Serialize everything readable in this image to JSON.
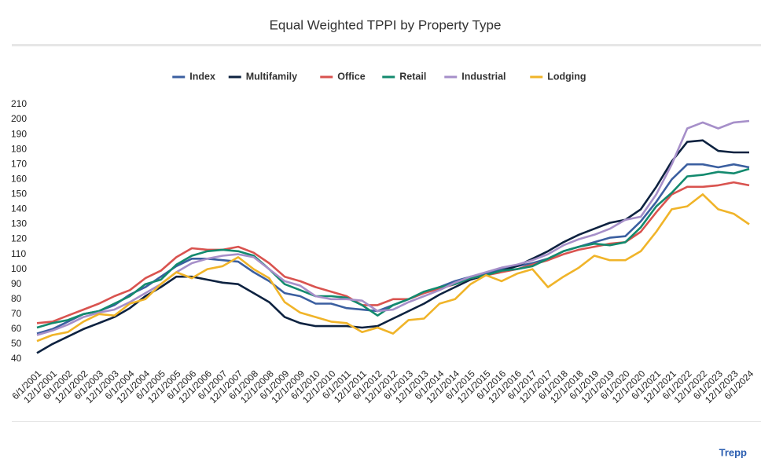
{
  "chart_data": {
    "type": "line",
    "title": "Equal Weighted TPPI by Property Type",
    "brand": "Trepp",
    "categories": [
      "6/1/2001",
      "12/1/2001",
      "6/1/2002",
      "12/1/2002",
      "6/1/2003",
      "12/1/2003",
      "6/1/2004",
      "12/1/2004",
      "6/1/2005",
      "12/1/2005",
      "6/1/2006",
      "12/1/2006",
      "6/1/2007",
      "12/1/2007",
      "6/1/2008",
      "12/1/2008",
      "6/1/2009",
      "12/1/2009",
      "6/1/2010",
      "12/1/2010",
      "6/1/2011",
      "12/1/2011",
      "6/1/2012",
      "12/1/2012",
      "6/1/2013",
      "12/1/2013",
      "6/1/2014",
      "12/1/2014",
      "6/1/2015",
      "12/1/2015",
      "6/1/2016",
      "12/1/2016",
      "6/1/2017",
      "12/1/2017",
      "6/1/2018",
      "12/1/2018",
      "6/1/2019",
      "12/1/2019",
      "6/1/2020",
      "12/1/2020",
      "6/1/2021",
      "12/1/2021",
      "6/1/2022",
      "12/1/2022",
      "6/1/2023",
      "12/1/2023",
      "6/1/2024"
    ],
    "series": [
      {
        "name": "Index",
        "color": "#3b5fa0",
        "values": [
          57,
          60,
          65,
          70,
          72,
          76,
          83,
          88,
          95,
          102,
          107,
          107,
          106,
          105,
          98,
          92,
          84,
          82,
          77,
          77,
          74,
          73,
          72,
          76,
          80,
          84,
          88,
          92,
          95,
          97,
          100,
          102,
          104,
          107,
          112,
          115,
          118,
          121,
          122,
          132,
          145,
          160,
          170,
          170,
          168,
          170,
          168
        ]
      },
      {
        "name": "Multifamily",
        "color": "#0d2240",
        "values": [
          44,
          50,
          55,
          60,
          64,
          68,
          74,
          82,
          88,
          95,
          95,
          93,
          91,
          90,
          84,
          78,
          68,
          64,
          62,
          62,
          62,
          61,
          62,
          67,
          72,
          77,
          83,
          88,
          93,
          96,
          99,
          102,
          107,
          112,
          118,
          123,
          127,
          131,
          133,
          140,
          155,
          172,
          185,
          186,
          179,
          178,
          178
        ]
      },
      {
        "name": "Office",
        "color": "#d9534f",
        "values": [
          64,
          65,
          69,
          73,
          77,
          82,
          86,
          94,
          99,
          108,
          114,
          113,
          113,
          115,
          111,
          104,
          95,
          92,
          88,
          85,
          82,
          76,
          76,
          80,
          80,
          84,
          87,
          90,
          94,
          96,
          98,
          100,
          103,
          106,
          110,
          113,
          115,
          117,
          118,
          125,
          138,
          150,
          155,
          155,
          156,
          158,
          156
        ]
      },
      {
        "name": "Retail",
        "color": "#138a6e",
        "values": [
          61,
          64,
          66,
          70,
          72,
          77,
          82,
          90,
          93,
          103,
          109,
          112,
          113,
          112,
          109,
          100,
          90,
          86,
          82,
          82,
          81,
          76,
          69,
          76,
          80,
          85,
          88,
          90,
          94,
          96,
          99,
          100,
          102,
          107,
          112,
          115,
          117,
          116,
          118,
          128,
          142,
          151,
          162,
          163,
          165,
          164,
          167
        ]
      },
      {
        "name": "Industrial",
        "color": "#a68fc9",
        "values": [
          56,
          59,
          63,
          68,
          71,
          73,
          78,
          84,
          90,
          98,
          104,
          107,
          109,
          110,
          108,
          100,
          92,
          89,
          82,
          80,
          80,
          79,
          72,
          73,
          78,
          82,
          86,
          91,
          95,
          98,
          101,
          103,
          106,
          110,
          116,
          120,
          123,
          127,
          133,
          135,
          150,
          170,
          194,
          198,
          194,
          198,
          199
        ]
      },
      {
        "name": "Lodging",
        "color": "#f0b429",
        "values": [
          52,
          56,
          58,
          65,
          70,
          69,
          77,
          80,
          90,
          98,
          94,
          100,
          102,
          108,
          100,
          94,
          78,
          71,
          68,
          65,
          64,
          58,
          61,
          57,
          66,
          67,
          77,
          80,
          90,
          96,
          92,
          97,
          100,
          88,
          95,
          101,
          109,
          106,
          106,
          112,
          125,
          140,
          142,
          150,
          140,
          137,
          130
        ]
      }
    ],
    "ylim": [
      40,
      210
    ],
    "yticks": [
      40,
      50,
      60,
      70,
      80,
      90,
      100,
      110,
      120,
      130,
      140,
      150,
      160,
      170,
      180,
      190,
      200,
      210
    ],
    "grid": false,
    "legend": "top"
  }
}
